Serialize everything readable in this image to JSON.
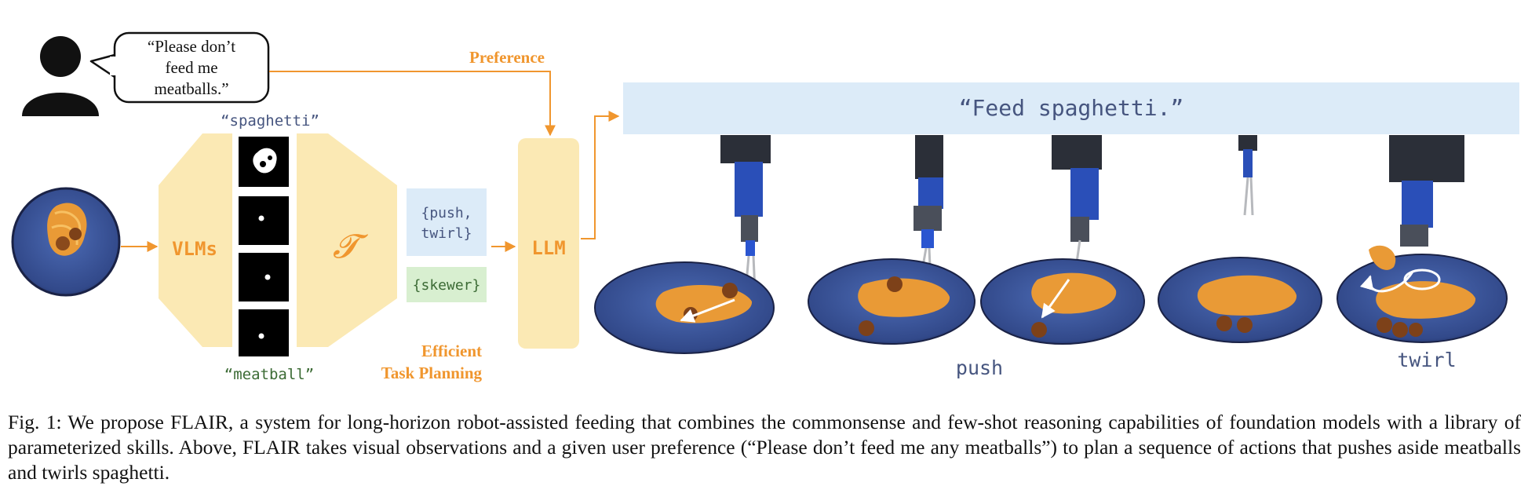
{
  "figure": {
    "user_quote": [
      "“Please don’t",
      "feed me",
      "meatballs.”"
    ],
    "preference_label": "Preference",
    "vlm_label": "VLMs",
    "tau_symbol": "𝓣",
    "label_spaghetti": "“spaghetti”",
    "label_meatball": "“meatball”",
    "skills_top": [
      "{push,",
      "twirl}"
    ],
    "skills_bottom": "{skewer}",
    "llm_label": "LLM",
    "planning_label": [
      "Efficient",
      "Task Planning"
    ],
    "command_text": "“Feed spaghetti.”",
    "action_push": "push",
    "action_twirl": "twirl",
    "colors": {
      "accent_orange": "#f0962e",
      "panel_yellow": "#fbe9b4",
      "command_bg": "#dcebf8",
      "skill_blue_bg": "#dcebf8",
      "skill_green_bg": "#d8efd0",
      "label_blue": "#46557f",
      "label_green": "#3c6b35",
      "plate_blue": "#3e5aa0"
    }
  },
  "caption": "Fig. 1: We propose FLAIR, a system for long-horizon robot-assisted feeding that combines the commonsense and few-shot reasoning capabilities of foundation models with a library of parameterized skills. Above, FLAIR takes visual observations and a given user preference (“Please don’t feed me any meatballs”) to plan a sequence of actions that pushes aside meatballs and twirls spaghetti."
}
